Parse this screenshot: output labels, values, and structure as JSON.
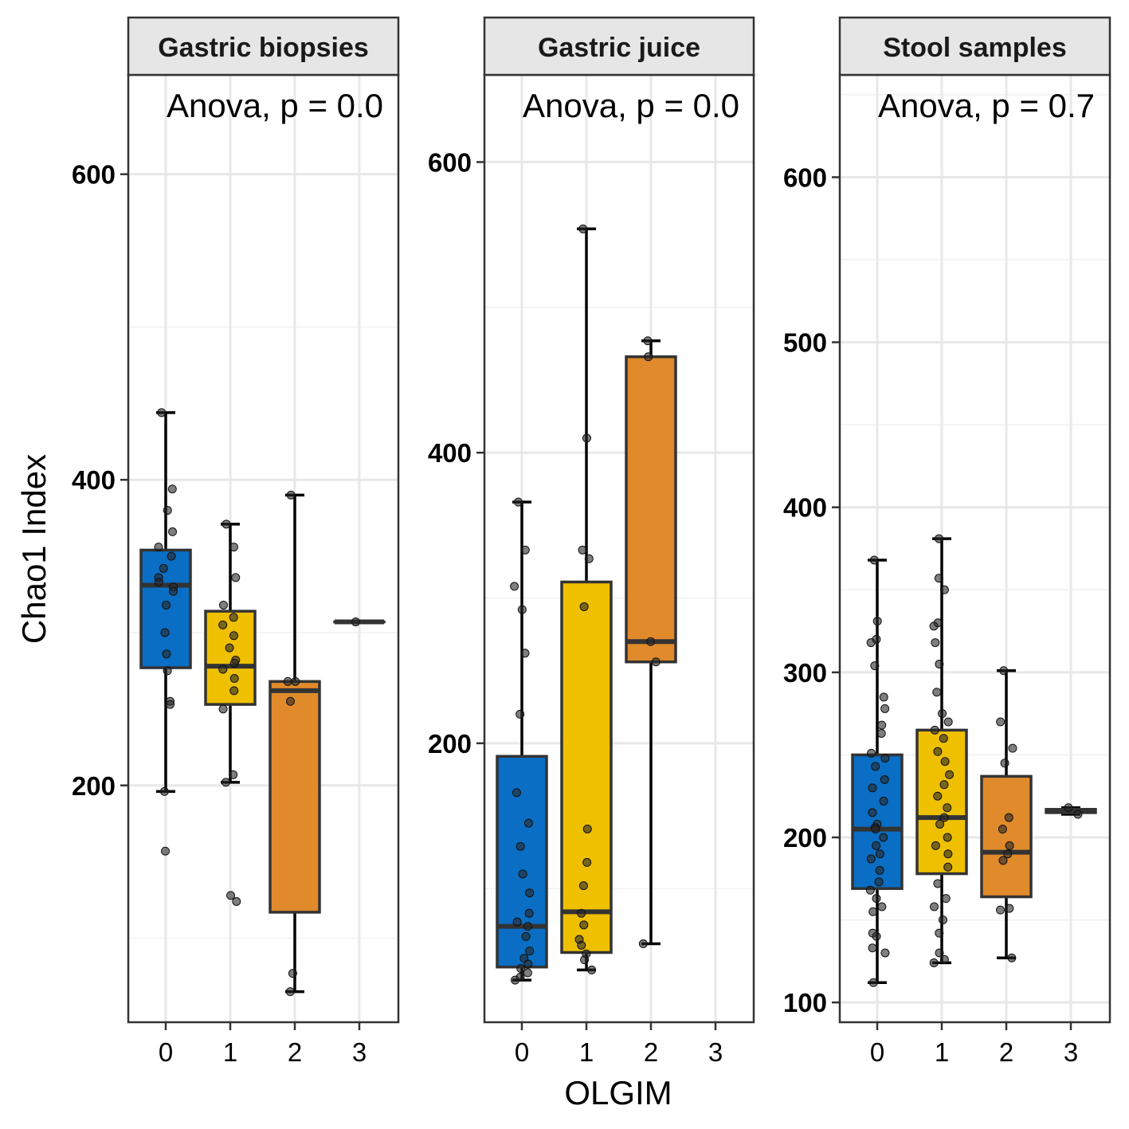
{
  "chart_data": {
    "type": "box",
    "xlabel": "OLGIM",
    "ylabel": "Chao1 Index",
    "categories": [
      "0",
      "1",
      "2",
      "3"
    ],
    "legend": "none",
    "grid": true,
    "colors": {
      "0": "#0a6ec4",
      "1": "#efc000",
      "2": "#e08a2b",
      "3": "#c9c9c9"
    },
    "panels": [
      {
        "title": "Gastric biopsies",
        "annotation": "Anova, p = 0.0",
        "ylim": [
          45,
          665
        ],
        "yticks": [
          200,
          400,
          600
        ],
        "boxes": [
          {
            "category": "0",
            "min": 196,
            "q1": 277,
            "median": 331,
            "q3": 354,
            "max": 444
          },
          {
            "category": "1",
            "min": 202,
            "q1": 253,
            "median": 278,
            "q3": 314,
            "max": 371
          },
          {
            "category": "2",
            "min": 65,
            "q1": 117,
            "median": 262,
            "q3": 268,
            "max": 390
          },
          {
            "category": "3",
            "min": 307,
            "q1": 307,
            "median": 307,
            "q3": 307,
            "max": 307
          }
        ],
        "points": {
          "0": [
            444,
            394,
            380,
            366,
            356,
            350,
            342,
            336,
            333,
            330,
            327,
            318,
            300,
            286,
            275,
            255,
            253,
            196,
            157
          ],
          "1": [
            371,
            356,
            336,
            318,
            310,
            305,
            298,
            290,
            282,
            280,
            276,
            270,
            262,
            250,
            207,
            202,
            128,
            124
          ],
          "2": [
            390,
            268,
            268,
            255,
            77,
            65
          ],
          "3": [
            307
          ]
        }
      },
      {
        "title": "Gastric juice",
        "annotation": "Anova, p = 0.0",
        "ylim": [
          8,
          660
        ],
        "yticks": [
          200,
          400,
          600
        ],
        "boxes": [
          {
            "category": "0",
            "min": 37,
            "q1": 46,
            "median": 74,
            "q3": 191,
            "max": 366
          },
          {
            "category": "1",
            "min": 44,
            "q1": 56,
            "median": 84,
            "q3": 311,
            "max": 554
          },
          {
            "category": "2",
            "min": 62,
            "q1": 256,
            "median": 270,
            "q3": 466,
            "max": 477
          },
          {
            "category": "3",
            "min": null,
            "q1": null,
            "median": null,
            "q3": null,
            "max": null
          }
        ],
        "points": {
          "0": [
            366,
            333,
            308,
            292,
            262,
            220,
            166,
            145,
            129,
            110,
            97,
            83,
            77,
            74,
            67,
            57,
            52,
            48,
            45,
            42,
            39,
            37
          ],
          "1": [
            554,
            410,
            333,
            327,
            294,
            141,
            118,
            102,
            83,
            75,
            65,
            61,
            55,
            51,
            44
          ],
          "2": [
            477,
            466,
            270,
            256,
            62
          ],
          "3": []
        }
      },
      {
        "title": "Stool samples",
        "annotation": "Anova, p = 0.7",
        "ylim": [
          88,
          662
        ],
        "yticks": [
          100,
          200,
          300,
          400,
          500,
          600
        ],
        "boxes": [
          {
            "category": "0",
            "min": 112,
            "q1": 169,
            "median": 205,
            "q3": 250,
            "max": 368
          },
          {
            "category": "1",
            "min": 124,
            "q1": 178,
            "median": 212,
            "q3": 265,
            "max": 381
          },
          {
            "category": "2",
            "min": 127,
            "q1": 164,
            "median": 191,
            "q3": 237,
            "max": 301
          },
          {
            "category": "3",
            "min": 214,
            "q1": 215,
            "median": 216,
            "q3": 217,
            "max": 218
          }
        ],
        "points": {
          "0": [
            368,
            331,
            320,
            318,
            304,
            285,
            278,
            268,
            263,
            251,
            248,
            243,
            235,
            230,
            222,
            215,
            208,
            206,
            205,
            200,
            195,
            190,
            187,
            180,
            173,
            168,
            163,
            158,
            155,
            142,
            140,
            133,
            130,
            112
          ],
          "1": [
            381,
            357,
            350,
            330,
            328,
            318,
            305,
            288,
            275,
            270,
            265,
            260,
            252,
            246,
            238,
            232,
            225,
            218,
            212,
            208,
            200,
            195,
            190,
            182,
            172,
            163,
            158,
            150,
            142,
            130,
            126,
            124
          ],
          "2": [
            301,
            270,
            254,
            245,
            212,
            205,
            195,
            190,
            186,
            157,
            156,
            127
          ],
          "3": [
            218,
            214
          ]
        }
      }
    ]
  }
}
